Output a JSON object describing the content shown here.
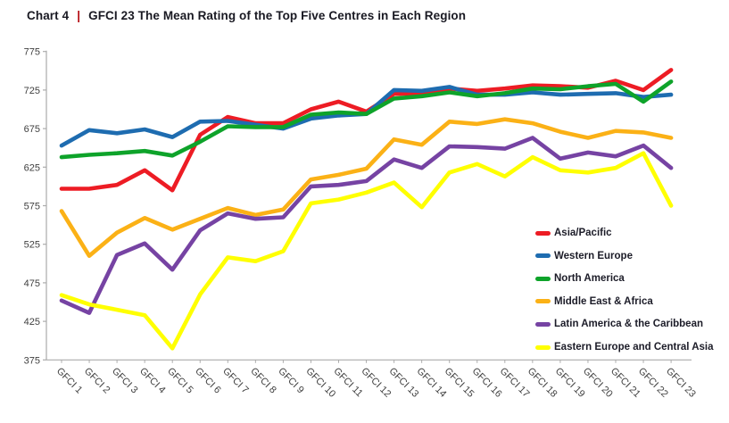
{
  "title": {
    "prefix": "Chart 4",
    "separator": "|",
    "text": "GFCI 23 The Mean Rating of the Top Five Centres in Each Region"
  },
  "colors": {
    "title_text": "#191922",
    "title_separator": "#b50f15",
    "axis_line": "#ababab",
    "axis_label": "#3f3f3f",
    "background": "#ffffff"
  },
  "chart_data": {
    "type": "line",
    "title": "GFCI 23 The Mean Rating of the Top Five Centres in Each Region",
    "grid": false,
    "legend_position": "inside-right",
    "x_categories": [
      "GFCI 1",
      "GFCI 2",
      "GFCI 3",
      "GFCI 4",
      "GFCI 5",
      "GFCI 6",
      "GFCI 7",
      "GFCI 8",
      "GFCI 9",
      "GFCI 10",
      "GFCI 11",
      "GFCI 12",
      "GFCI 13",
      "GFCI 14",
      "GFCI 15",
      "GFCI 16",
      "GFCI 17",
      "GFCI 18",
      "GFCI 19",
      "GFCI 20",
      "GFCI 21",
      "GFCI 22",
      "GFCI 23"
    ],
    "y_axis": {
      "min": 375,
      "max": 775,
      "step": 50,
      "ticks": [
        775,
        725,
        675,
        625,
        575,
        525,
        475,
        425,
        375
      ]
    },
    "series": [
      {
        "name": "Asia/Pacific",
        "color": "#ed1c24",
        "values": [
          597,
          597,
          602,
          621,
          595,
          667,
          690,
          682,
          682,
          700,
          710,
          697,
          720,
          721,
          727,
          724,
          727,
          731,
          730,
          728,
          737,
          725,
          751
        ]
      },
      {
        "name": "Western Europe",
        "color": "#1e6cb0",
        "values": [
          653,
          673,
          669,
          674,
          664,
          684,
          685,
          680,
          675,
          688,
          692,
          694,
          725,
          724,
          729,
          719,
          719,
          722,
          719,
          720,
          721,
          716,
          719
        ]
      },
      {
        "name": "North America",
        "color": "#0ea32a",
        "values": [
          638,
          641,
          643,
          646,
          640,
          658,
          678,
          677,
          677,
          693,
          696,
          694,
          714,
          717,
          722,
          717,
          721,
          727,
          726,
          730,
          733,
          710,
          736
        ]
      },
      {
        "name": "Middle East & Africa",
        "color": "#fbb116",
        "values": [
          568,
          510,
          540,
          559,
          544,
          558,
          572,
          563,
          570,
          609,
          615,
          623,
          661,
          654,
          684,
          681,
          687,
          682,
          671,
          663,
          672,
          670,
          663
        ]
      },
      {
        "name": "Latin America & the Caribbean",
        "color": "#7643a3",
        "values": [
          452,
          436,
          511,
          526,
          492,
          543,
          565,
          558,
          560,
          600,
          602,
          607,
          635,
          624,
          652,
          651,
          649,
          663,
          636,
          644,
          639,
          653,
          624
        ]
      },
      {
        "name": "Eastern Europe and Central Asia",
        "color": "#ffff00",
        "values": [
          459,
          447,
          440,
          433,
          390,
          460,
          508,
          503,
          516,
          578,
          583,
          592,
          605,
          573,
          618,
          629,
          613,
          638,
          621,
          618,
          624,
          643,
          575
        ]
      }
    ]
  }
}
